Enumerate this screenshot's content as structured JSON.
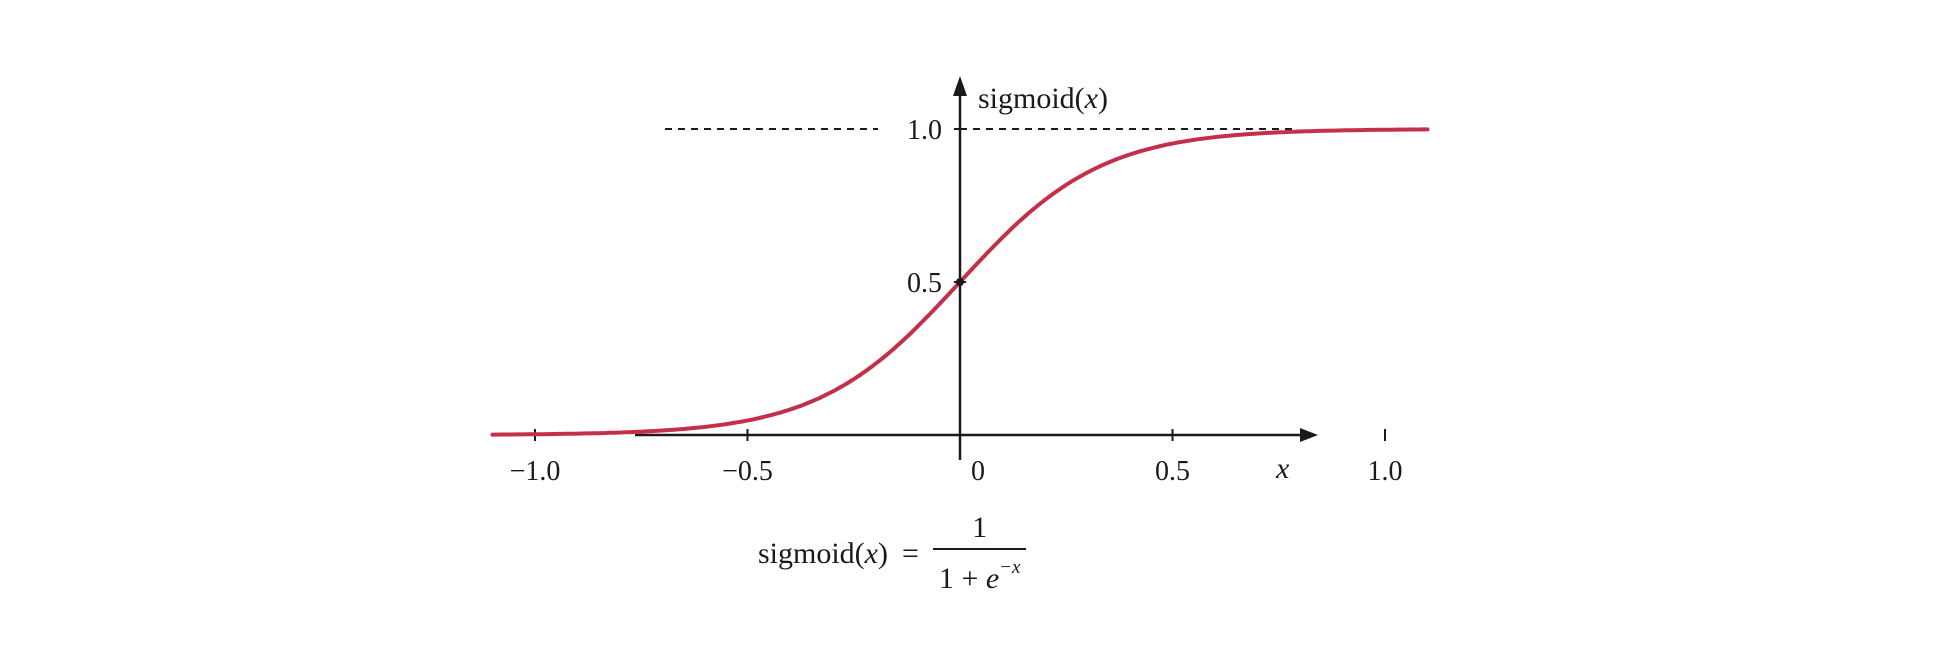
{
  "chart_data": {
    "type": "line",
    "title": "",
    "ylabel_text": "sigmoid(",
    "ylabel_var": "x",
    "ylabel_close": ")",
    "xlabel": "x",
    "xlim": [
      -1.2,
      1.35
    ],
    "ylim": [
      0,
      1.3
    ],
    "x_ticks": [
      {
        "value": -1.0,
        "label": "−1.0"
      },
      {
        "value": -0.5,
        "label": "−0.5"
      },
      {
        "value": 0,
        "label": "0"
      },
      {
        "value": 0.5,
        "label": "0.5"
      },
      {
        "value": 1.0,
        "label": "1.0"
      }
    ],
    "y_ticks": [
      {
        "value": 0.5,
        "label": "0.5"
      },
      {
        "value": 1.0,
        "label": "1.0"
      }
    ],
    "asymptote": 1.0,
    "steepness": 6,
    "x": [
      -1.1,
      -1.0,
      -0.8,
      -0.6,
      -0.5,
      -0.4,
      -0.3,
      -0.2,
      -0.1,
      0.0,
      0.1,
      0.2,
      0.3,
      0.4,
      0.5,
      0.6,
      0.8,
      1.0,
      1.1
    ],
    "series": [
      {
        "values": [
          0.001,
          0.002,
          0.008,
          0.027,
          0.047,
          0.083,
          0.142,
          0.231,
          0.354,
          0.5,
          0.646,
          0.769,
          0.858,
          0.917,
          0.953,
          0.973,
          0.992,
          0.998,
          0.999
        ],
        "color": "#c4304a"
      }
    ],
    "grid": false,
    "legend": "none"
  },
  "formula": {
    "lhs_text": "sigmoid(",
    "lhs_var": "x",
    "lhs_close": ")",
    "equals": "=",
    "numerator": "1",
    "denominator_base": "1 + ",
    "denominator_e": "e",
    "denominator_exp": "−x"
  }
}
